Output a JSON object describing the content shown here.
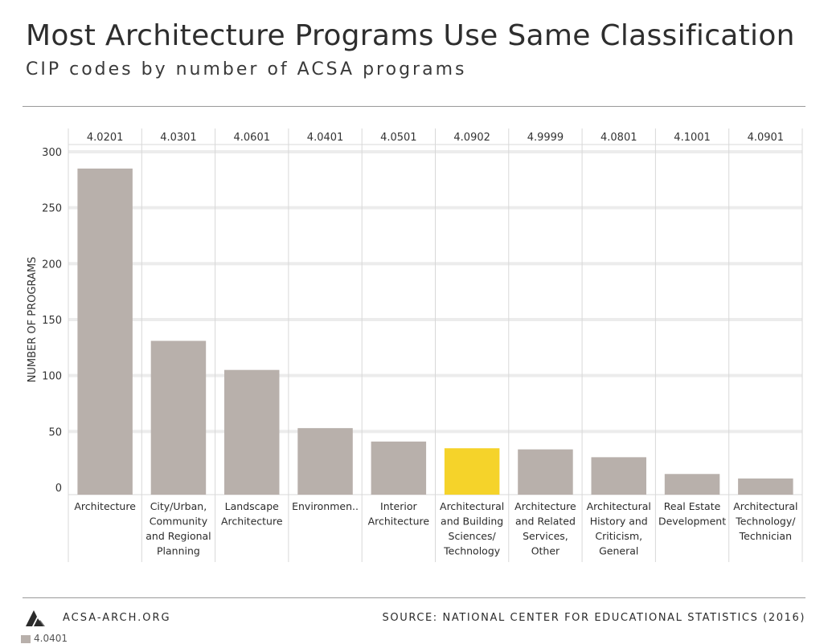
{
  "title": "Most Architecture Programs Use Same Classification",
  "subtitle": "CIP codes by number of ACSA programs",
  "footer": {
    "site": "ACSA-ARCH.ORG",
    "source": "SOURCE: NATIONAL CENTER FOR EDUCATIONAL STATISTICS (2016)",
    "legend_fragment": "4.0401"
  },
  "colors": {
    "bar": "#b8b0ab",
    "highlight": "#f5d32a",
    "grid": "#ececec",
    "divider": "#d8d8d8"
  },
  "chart_data": {
    "type": "bar",
    "ylabel": "NUMBER OF PROGRAMS",
    "ylim": [
      0,
      300
    ],
    "yticks": [
      0,
      50,
      100,
      150,
      200,
      250,
      300
    ],
    "grid": true,
    "codes": [
      "4.0201",
      "4.0301",
      "4.0601",
      "4.0401",
      "4.0501",
      "4.0902",
      "4.9999",
      "4.0801",
      "4.1001",
      "4.0901"
    ],
    "categories": [
      [
        "Architecture"
      ],
      [
        "City/Urban,",
        "Community",
        "and Regional",
        "Planning"
      ],
      [
        "Landscape",
        "Architecture"
      ],
      [
        "Environmen.."
      ],
      [
        "Interior",
        "Architecture"
      ],
      [
        "Architectural",
        "and Building",
        "Sciences/",
        "Technology"
      ],
      [
        "Architecture",
        "and Related",
        "Services,",
        "Other"
      ],
      [
        "Architectural",
        "History and",
        "Criticism,",
        "General"
      ],
      [
        "Real Estate",
        "Development"
      ],
      [
        "Architectural",
        "Technology/",
        "Technician"
      ]
    ],
    "values": [
      285,
      131,
      105,
      53,
      41,
      35,
      34,
      27,
      12,
      8
    ],
    "highlight_index": 5
  }
}
